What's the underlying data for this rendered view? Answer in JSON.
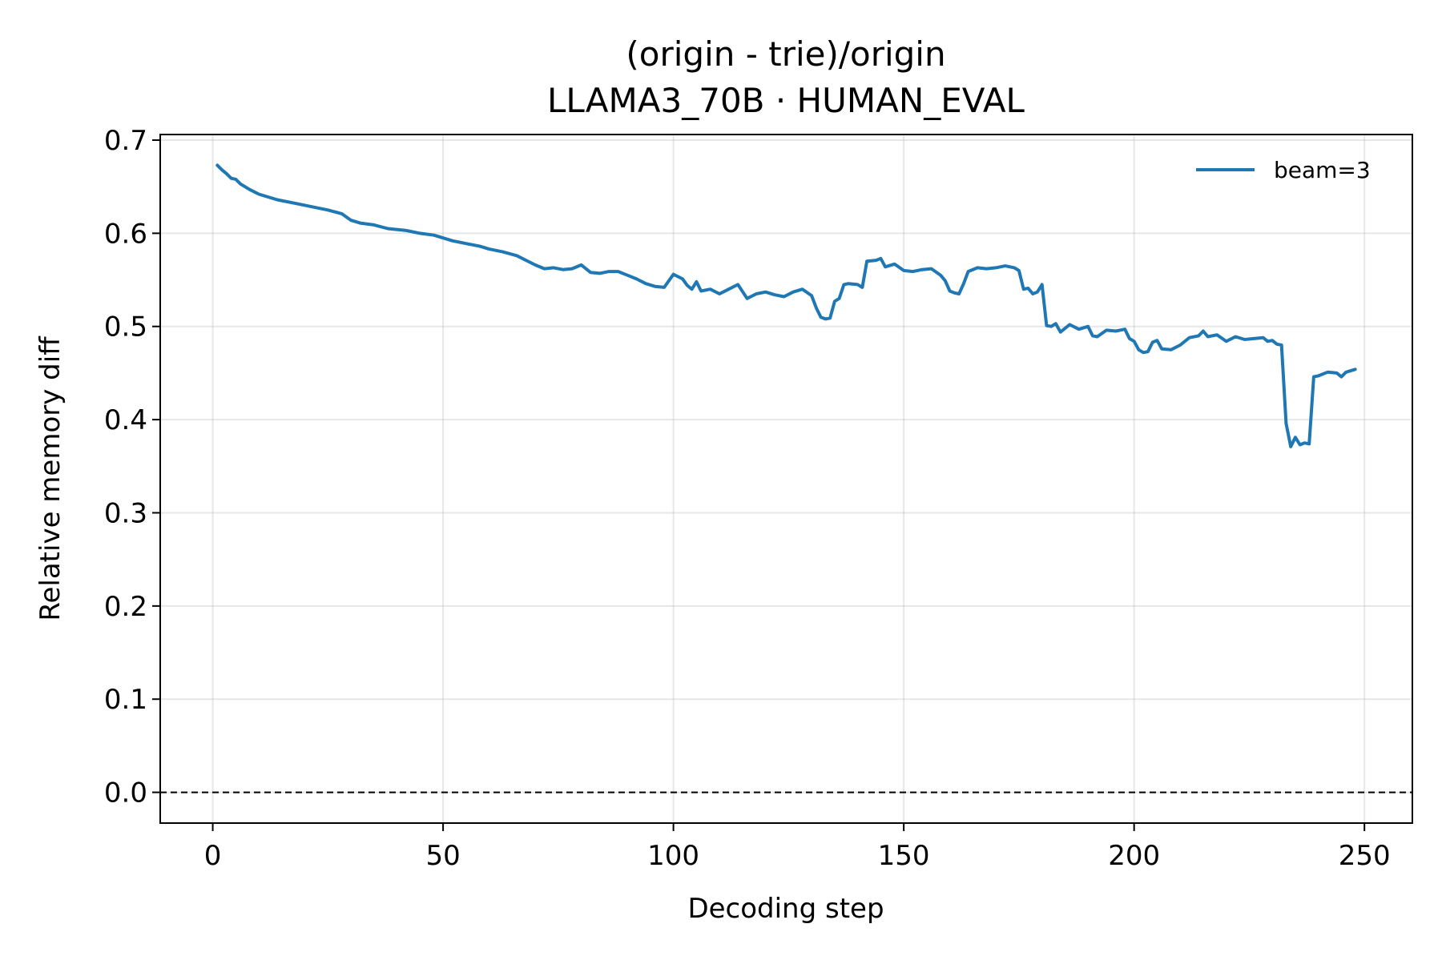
{
  "chart_data": {
    "type": "line",
    "title_lines": [
      "(origin - trie)/origin",
      "LLAMA3_70B · HUMAN_EVAL"
    ],
    "xlabel": "Decoding step",
    "ylabel": "Relative memory diff",
    "xlim": [
      -11.4,
      260.4
    ],
    "ylim": [
      -0.033,
      0.706
    ],
    "xticks": [
      0,
      50,
      100,
      150,
      200,
      250
    ],
    "yticks": [
      0.0,
      0.1,
      0.2,
      0.3,
      0.4,
      0.5,
      0.6,
      0.7
    ],
    "xtick_labels": [
      "0",
      "50",
      "100",
      "150",
      "200",
      "250"
    ],
    "ytick_labels": [
      "0.0",
      "0.1",
      "0.2",
      "0.3",
      "0.4",
      "0.5",
      "0.6",
      "0.7"
    ],
    "grid": true,
    "legend_position": "top-right",
    "reference_line": {
      "y": 0.0,
      "style": "dashed",
      "color": "#000000"
    },
    "series": [
      {
        "name": "beam=3",
        "color": "#1f77b4",
        "anchors": [
          [
            1,
            0.673
          ],
          [
            2,
            0.668
          ],
          [
            3,
            0.664
          ],
          [
            4,
            0.659
          ],
          [
            5,
            0.658
          ],
          [
            6,
            0.653
          ],
          [
            8,
            0.647
          ],
          [
            10,
            0.642
          ],
          [
            12,
            0.639
          ],
          [
            14,
            0.636
          ],
          [
            18,
            0.632
          ],
          [
            20,
            0.63
          ],
          [
            22,
            0.628
          ],
          [
            25,
            0.625
          ],
          [
            28,
            0.621
          ],
          [
            30,
            0.614
          ],
          [
            32,
            0.611
          ],
          [
            35,
            0.609
          ],
          [
            38,
            0.605
          ],
          [
            42,
            0.603
          ],
          [
            45,
            0.6
          ],
          [
            48,
            0.598
          ],
          [
            50,
            0.595
          ],
          [
            52,
            0.592
          ],
          [
            55,
            0.589
          ],
          [
            58,
            0.586
          ],
          [
            60,
            0.583
          ],
          [
            63,
            0.58
          ],
          [
            66,
            0.576
          ],
          [
            68,
            0.571
          ],
          [
            70,
            0.566
          ],
          [
            72,
            0.562
          ],
          [
            74,
            0.563
          ],
          [
            76,
            0.561
          ],
          [
            78,
            0.562
          ],
          [
            80,
            0.566
          ],
          [
            82,
            0.558
          ],
          [
            84,
            0.557
          ],
          [
            86,
            0.559
          ],
          [
            88,
            0.559
          ],
          [
            90,
            0.555
          ],
          [
            92,
            0.551
          ],
          [
            94,
            0.546
          ],
          [
            96,
            0.543
          ],
          [
            98,
            0.542
          ],
          [
            100,
            0.556
          ],
          [
            102,
            0.551
          ],
          [
            103,
            0.544
          ],
          [
            104,
            0.54
          ],
          [
            105,
            0.548
          ],
          [
            106,
            0.538
          ],
          [
            108,
            0.54
          ],
          [
            110,
            0.535
          ],
          [
            112,
            0.54
          ],
          [
            114,
            0.545
          ],
          [
            116,
            0.53
          ],
          [
            118,
            0.535
          ],
          [
            120,
            0.537
          ],
          [
            122,
            0.534
          ],
          [
            124,
            0.532
          ],
          [
            126,
            0.537
          ],
          [
            128,
            0.54
          ],
          [
            130,
            0.533
          ],
          [
            131,
            0.52
          ],
          [
            132,
            0.51
          ],
          [
            133,
            0.508
          ],
          [
            134,
            0.509
          ],
          [
            135,
            0.527
          ],
          [
            136,
            0.53
          ],
          [
            137,
            0.545
          ],
          [
            138,
            0.546
          ],
          [
            140,
            0.545
          ],
          [
            141,
            0.542
          ],
          [
            142,
            0.57
          ],
          [
            144,
            0.571
          ],
          [
            145,
            0.573
          ],
          [
            146,
            0.564
          ],
          [
            148,
            0.567
          ],
          [
            150,
            0.56
          ],
          [
            152,
            0.559
          ],
          [
            154,
            0.561
          ],
          [
            156,
            0.562
          ],
          [
            158,
            0.555
          ],
          [
            159,
            0.549
          ],
          [
            160,
            0.538
          ],
          [
            161,
            0.536
          ],
          [
            162,
            0.535
          ],
          [
            163,
            0.546
          ],
          [
            164,
            0.559
          ],
          [
            166,
            0.563
          ],
          [
            168,
            0.562
          ],
          [
            170,
            0.563
          ],
          [
            172,
            0.565
          ],
          [
            174,
            0.563
          ],
          [
            175,
            0.56
          ],
          [
            176,
            0.54
          ],
          [
            177,
            0.541
          ],
          [
            178,
            0.535
          ],
          [
            179,
            0.537
          ],
          [
            180,
            0.545
          ],
          [
            181,
            0.501
          ],
          [
            182,
            0.5
          ],
          [
            183,
            0.503
          ],
          [
            184,
            0.494
          ],
          [
            186,
            0.502
          ],
          [
            188,
            0.497
          ],
          [
            190,
            0.5
          ],
          [
            191,
            0.49
          ],
          [
            192,
            0.489
          ],
          [
            194,
            0.496
          ],
          [
            196,
            0.495
          ],
          [
            198,
            0.497
          ],
          [
            199,
            0.487
          ],
          [
            200,
            0.484
          ],
          [
            201,
            0.475
          ],
          [
            202,
            0.472
          ],
          [
            203,
            0.473
          ],
          [
            204,
            0.483
          ],
          [
            205,
            0.485
          ],
          [
            206,
            0.476
          ],
          [
            208,
            0.475
          ],
          [
            210,
            0.48
          ],
          [
            212,
            0.488
          ],
          [
            214,
            0.49
          ],
          [
            215,
            0.495
          ],
          [
            216,
            0.489
          ],
          [
            218,
            0.491
          ],
          [
            220,
            0.484
          ],
          [
            222,
            0.489
          ],
          [
            224,
            0.486
          ],
          [
            226,
            0.487
          ],
          [
            228,
            0.488
          ],
          [
            229,
            0.484
          ],
          [
            230,
            0.485
          ],
          [
            231,
            0.481
          ],
          [
            232,
            0.48
          ],
          [
            233,
            0.396
          ],
          [
            234,
            0.371
          ],
          [
            235,
            0.381
          ],
          [
            236,
            0.373
          ],
          [
            237,
            0.375
          ],
          [
            238,
            0.374
          ],
          [
            239,
            0.446
          ],
          [
            240,
            0.447
          ],
          [
            242,
            0.451
          ],
          [
            244,
            0.45
          ],
          [
            245,
            0.446
          ],
          [
            246,
            0.451
          ],
          [
            248,
            0.454
          ]
        ]
      }
    ]
  }
}
